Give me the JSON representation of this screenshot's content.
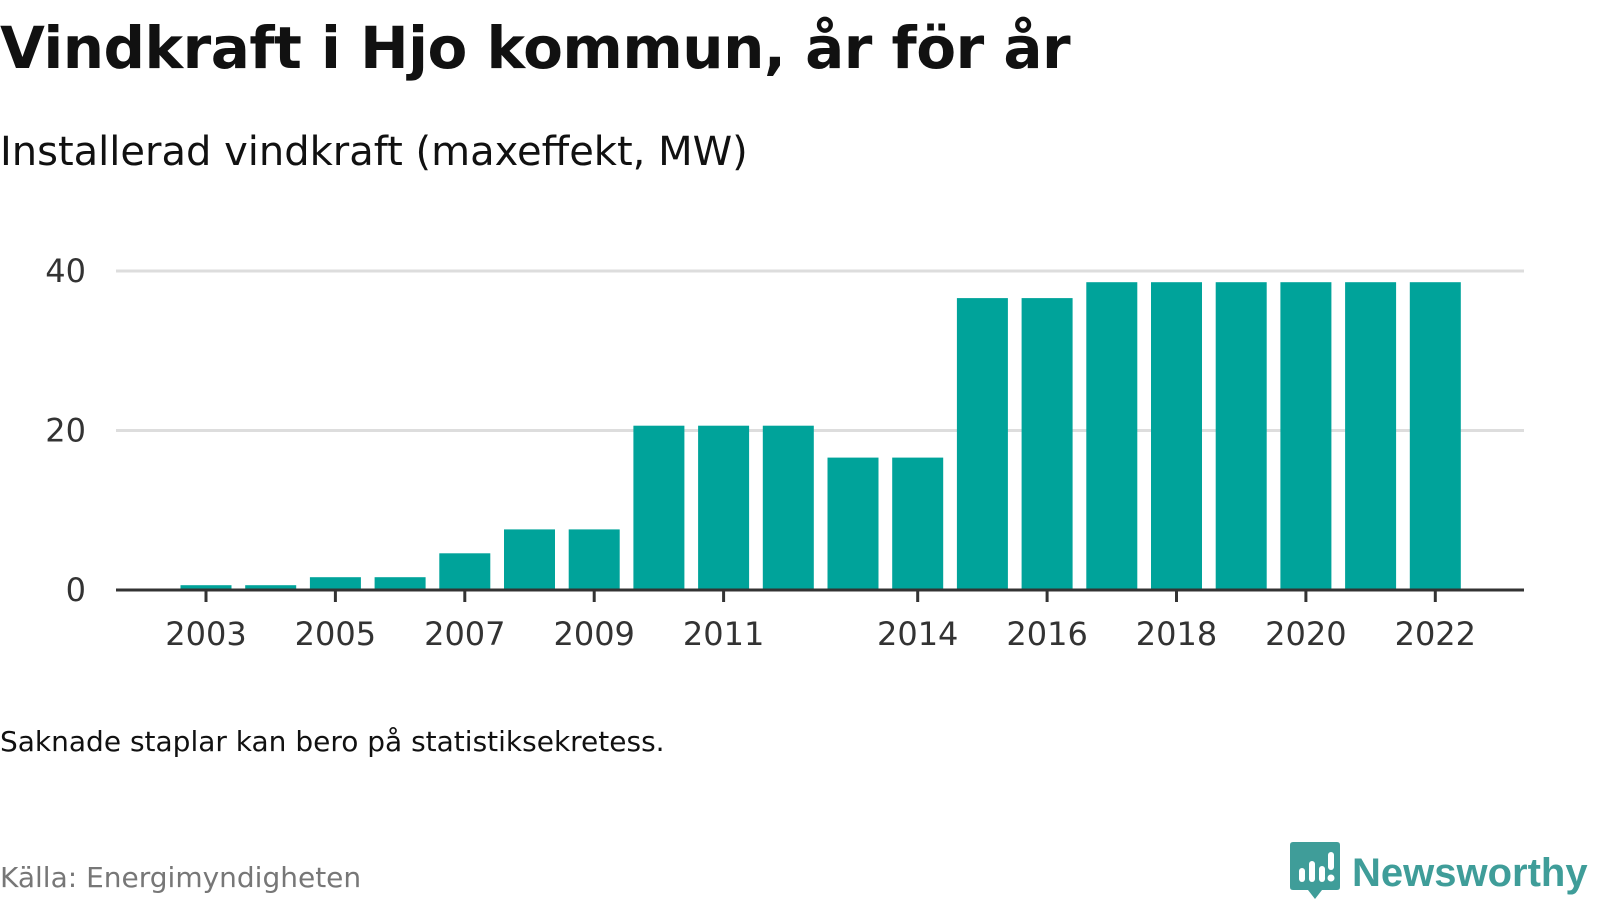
{
  "header": {
    "title": "Vindkraft i Hjo kommun, år för år",
    "subtitle": "Installerad vindkraft (maxeffekt, MW)"
  },
  "footer": {
    "note": "Saknade staplar kan bero på statistiksekretess.",
    "source": "Källa: Energimyndigheten",
    "brand": "Newsworthy"
  },
  "colors": {
    "bar": "#00a39a",
    "grid": "#dddddd",
    "axis": "#333333",
    "brand": "#3f9d99"
  },
  "icons": {
    "brand_logo": "newsworthy-chart-bubble-icon"
  },
  "chart_data": {
    "type": "bar",
    "title": "Vindkraft i Hjo kommun, år för år",
    "subtitle": "Installerad vindkraft (maxeffekt, MW)",
    "xlabel": "",
    "ylabel": "",
    "categories": [
      "2003",
      "2004",
      "2005",
      "2006",
      "2007",
      "2008",
      "2009",
      "2010",
      "2011",
      "2012",
      "2013",
      "2014",
      "2015",
      "2016",
      "2017",
      "2018",
      "2019",
      "2020",
      "2021",
      "2022"
    ],
    "values": [
      0.6,
      0.6,
      1.6,
      1.6,
      4.6,
      7.6,
      7.6,
      20.6,
      20.6,
      20.6,
      16.6,
      16.6,
      36.6,
      36.6,
      38.6,
      38.6,
      38.6,
      38.6,
      38.6,
      38.6
    ],
    "x_tick_labels": [
      "2003",
      "2005",
      "2007",
      "2009",
      "2011",
      "2014",
      "2016",
      "2018",
      "2020",
      "2022"
    ],
    "y_ticks": [
      0,
      20,
      40
    ],
    "ylim": [
      0,
      40
    ],
    "grid": true,
    "legend": "none"
  }
}
